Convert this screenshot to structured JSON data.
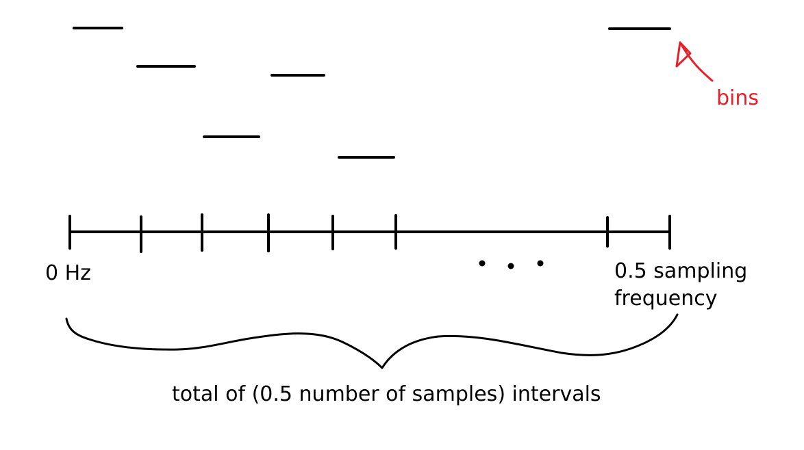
{
  "labels": {
    "start": "0 Hz",
    "end_line1": "0.5 sampling",
    "end_line2": "frequency",
    "total": "total of  (0.5 number of samples) intervals",
    "bins": "bins"
  },
  "colors": {
    "ink": "#000000",
    "annotation": "#e8202a"
  },
  "icons": {
    "ellipsis": "ellipsis-dots",
    "arrow": "hand-drawn-arrow",
    "brace": "curly-brace"
  }
}
